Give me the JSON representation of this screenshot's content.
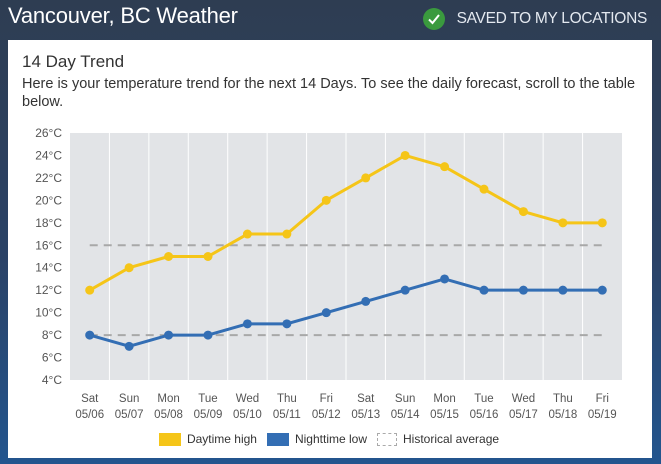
{
  "header": {
    "title": "Vancouver, BC Weather",
    "saved_label": "SAVED TO MY LOCATIONS",
    "saved_icon": "check-circle-icon"
  },
  "card": {
    "title": "14 Day Trend",
    "description": "Here is your temperature trend for the next 14 Days. To see the daily forecast, scroll to the table below."
  },
  "colors": {
    "high": "#f5c518",
    "low": "#336eb4",
    "historical": "#a8a8a8",
    "plot_bg": "#e2e4e7",
    "saved_check": "#3a9a3e"
  },
  "chart_data": {
    "type": "line",
    "title": "14 Day Trend",
    "xlabel": "",
    "ylabel": "",
    "categories": [
      {
        "day": "Sat",
        "date": "05/06"
      },
      {
        "day": "Sun",
        "date": "05/07"
      },
      {
        "day": "Mon",
        "date": "05/08"
      },
      {
        "day": "Tue",
        "date": "05/09"
      },
      {
        "day": "Wed",
        "date": "05/10"
      },
      {
        "day": "Thu",
        "date": "05/11"
      },
      {
        "day": "Fri",
        "date": "05/12"
      },
      {
        "day": "Sat",
        "date": "05/13"
      },
      {
        "day": "Sun",
        "date": "05/14"
      },
      {
        "day": "Mon",
        "date": "05/15"
      },
      {
        "day": "Tue",
        "date": "05/16"
      },
      {
        "day": "Wed",
        "date": "05/17"
      },
      {
        "day": "Thu",
        "date": "05/18"
      },
      {
        "day": "Fri",
        "date": "05/19"
      }
    ],
    "ylim": [
      4,
      26
    ],
    "yticks": [
      26,
      24,
      22,
      20,
      18,
      16,
      14,
      12,
      10,
      8,
      6,
      4
    ],
    "ytick_unit": "°C",
    "grid": "vertical",
    "series": [
      {
        "name": "Daytime high",
        "values": [
          12,
          14,
          15,
          15,
          17,
          17,
          20,
          22,
          24,
          23,
          21,
          19,
          18,
          18
        ]
      },
      {
        "name": "Nighttime low",
        "values": [
          8,
          7,
          8,
          8,
          9,
          9,
          10,
          11,
          12,
          13,
          12,
          12,
          12,
          12
        ]
      }
    ],
    "historical_average": {
      "name": "Historical average",
      "high": 16,
      "low": 8
    },
    "legend": {
      "placement": "bottom",
      "items": [
        "Daytime high",
        "Nighttime low",
        "Historical average"
      ]
    }
  }
}
